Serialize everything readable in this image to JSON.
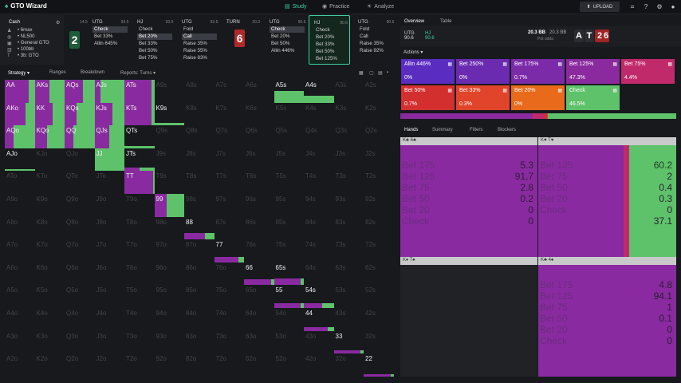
{
  "app": {
    "title": "GTO Wizard"
  },
  "nav": {
    "study": "Study",
    "practice": "Practice",
    "analyze": "Analyze",
    "upload": "UPLOAD"
  },
  "settings": {
    "mode": "Cash",
    "items": [
      "6max",
      "NL500",
      "General GTO",
      "100bb",
      "3b: GTO"
    ]
  },
  "seats": [
    {
      "pos": "",
      "stack": "14.5",
      "actions": []
    },
    {
      "pos": "UTG",
      "stack": "93.5",
      "actions": [
        {
          "label": "Check",
          "sel": true
        },
        {
          "label": "Bet 33%",
          "sel": false
        },
        {
          "label": "Allin 645%",
          "sel": false
        }
      ]
    },
    {
      "pos": "HJ",
      "stack": "93.5",
      "actions": [
        {
          "label": "Check",
          "sel": false
        },
        {
          "label": "Bet 20%",
          "sel": true
        },
        {
          "label": "Bet 33%",
          "sel": false
        },
        {
          "label": "Bet 50%",
          "sel": false
        },
        {
          "label": "Bet 75%",
          "sel": false
        }
      ]
    },
    {
      "pos": "UTG",
      "stack": "93.5",
      "actions": [
        {
          "label": "Fold",
          "sel": false
        },
        {
          "label": "Call",
          "sel": true
        },
        {
          "label": "Raise 35%",
          "sel": false
        },
        {
          "label": "Raise 55%",
          "sel": false
        },
        {
          "label": "Raise 83%",
          "sel": false
        }
      ]
    },
    {
      "pos": "TURN",
      "stack": "20.3",
      "actions": []
    },
    {
      "pos": "UTG",
      "stack": "90.6",
      "actions": [
        {
          "label": "Check",
          "sel": true
        },
        {
          "label": "Bet 20%",
          "sel": false
        },
        {
          "label": "Bet 50%",
          "sel": false
        },
        {
          "label": "Allin 446%",
          "sel": false
        }
      ]
    },
    {
      "pos": "HJ",
      "stack": "90.6",
      "actions": [
        {
          "label": "Check",
          "sel": false
        },
        {
          "label": "Bet 20%",
          "sel": false
        },
        {
          "label": "Bet 33%",
          "sel": false
        },
        {
          "label": "Bet 50%",
          "sel": false
        },
        {
          "label": "Bet 125%",
          "sel": false
        }
      ]
    },
    {
      "pos": "UTG",
      "stack": "90.6",
      "actions": [
        {
          "label": "Fold",
          "sel": false
        },
        {
          "label": "Call",
          "sel": false
        },
        {
          "label": "Raise 35%",
          "sel": false
        },
        {
          "label": "Raise 92%",
          "sel": false
        }
      ]
    }
  ],
  "board_badges": {
    "flop": "2",
    "turn": "6"
  },
  "strategy_tabs": [
    "Strategy",
    "Ranges",
    "Breakdown",
    "Reports: Turns"
  ],
  "right_tabs": [
    "Overview",
    "Table"
  ],
  "spot": {
    "pos1": "UTG",
    "val1": "90.6",
    "pos2": "HJ",
    "val2": "90.6",
    "pot": "20.3 BB",
    "pot2": "20.3 BB",
    "potodds": "Pot odds:",
    "cards": [
      "A",
      "T",
      "2",
      "6"
    ]
  },
  "actions_label": "Actions",
  "actions": [
    {
      "label": "Allin 446%",
      "value": "0%",
      "color": "#5a2cbf"
    },
    {
      "label": "Bet 250%",
      "value": "0%",
      "color": "#6a2bb0"
    },
    {
      "label": "Bet 175%",
      "value": "0.7%",
      "color": "#7b2aa8"
    },
    {
      "label": "Bet 125%",
      "value": "47.3%",
      "color": "#8a2a9e"
    },
    {
      "label": "Bet 75%",
      "value": "4.4%",
      "color": "#c02a6a"
    },
    {
      "label": "Bet 50%",
      "value": "0.7%",
      "color": "#d42f2f"
    },
    {
      "label": "Bet 33%",
      "value": "0.3%",
      "color": "#e0442a"
    },
    {
      "label": "Bet 20%",
      "value": "0%",
      "color": "#e86a1a"
    },
    {
      "label": "Check",
      "value": "46.5%",
      "color": "#5ec26a"
    }
  ],
  "hands_tabs": [
    "Hands",
    "Summary",
    "Filters",
    "Blockers"
  ],
  "hand_panels": [
    {
      "head": "K♣ 6♣",
      "lines": [
        {
          "a": "Bet 175",
          "v": "5.3"
        },
        {
          "a": "Bet 125",
          "v": "91.7"
        },
        {
          "a": "Bet 75",
          "v": "2.8"
        },
        {
          "a": "Bet 50",
          "v": "0.2"
        },
        {
          "a": "Bet 20",
          "v": "0"
        },
        {
          "a": "Check",
          "v": "0"
        }
      ]
    },
    {
      "head": "K♥ T♥",
      "lines": [
        {
          "a": "Bet 125",
          "v": "60.2"
        },
        {
          "a": "Bet 75",
          "v": "2"
        },
        {
          "a": "Bet 50",
          "v": "0.4"
        },
        {
          "a": "Bet 20",
          "v": "0.3"
        },
        {
          "a": "Check",
          "v": "0"
        },
        {
          "a": "",
          "v": "37.1"
        }
      ]
    },
    {
      "head": "K♦ T♠",
      "lines": []
    },
    {
      "head": "K♣ 4♠",
      "lines": [
        {
          "a": "Bet 175",
          "v": "4.8"
        },
        {
          "a": "Bet 125",
          "v": "94.1"
        },
        {
          "a": "Bet 75",
          "v": "1"
        },
        {
          "a": "Bet 50",
          "v": "0.1"
        },
        {
          "a": "Bet 20",
          "v": "0"
        },
        {
          "a": "Check",
          "v": "0"
        }
      ]
    }
  ],
  "grid": {
    "ranks": [
      "A",
      "K",
      "Q",
      "J",
      "T",
      "9",
      "8",
      "7",
      "6",
      "5",
      "4",
      "3",
      "2"
    ],
    "active": {
      "AA": [
        0.8,
        0.2,
        1
      ],
      "AKs": [
        0.5,
        0.5,
        1
      ],
      "AQs": [
        0.6,
        0.4,
        1
      ],
      "AJs": [
        0.2,
        0.8,
        1
      ],
      "ATs": [
        0.9,
        0.1,
        1
      ],
      "AKo": [
        0.7,
        0.3,
        1
      ],
      "KK": [
        0.6,
        0.4,
        1
      ],
      "KQs": [
        0.4,
        0.6,
        1
      ],
      "KJs": [
        0.6,
        0.4,
        1
      ],
      "KTs": [
        0.9,
        0.1,
        1
      ],
      "AQo": [
        0.3,
        0.7,
        1
      ],
      "KQo": [
        0.4,
        0.6,
        1
      ],
      "QQ": [
        0.3,
        0.7,
        1
      ],
      "QJs": [
        0.5,
        0.5,
        1
      ],
      "JJ": [
        0,
        1,
        1
      ],
      "TT": [
        0.95,
        0.05,
        1
      ],
      "99": [
        0.4,
        0.6,
        1
      ],
      "A5s": [
        0,
        1,
        0.5
      ],
      "A4s": [
        0,
        1,
        0.3
      ],
      "K9s": [
        0,
        1,
        0.1
      ],
      "QTs": [
        0,
        1,
        0.1
      ],
      "JTs": [
        0.5,
        0.5,
        0.15
      ],
      "88": [
        0.7,
        0.3,
        0.3
      ],
      "77": [
        0.8,
        0.2,
        0.25
      ],
      "66": [
        0.9,
        0.1,
        0.25
      ],
      "65s": [
        0.9,
        0.1,
        0.3
      ],
      "55": [
        0.9,
        0.1,
        0.2
      ],
      "54s": [
        0.6,
        0.4,
        0.2
      ],
      "44": [
        0.8,
        0.2,
        0.15
      ],
      "33": [
        0.9,
        0.1,
        0.15
      ],
      "22": [
        0.9,
        0.1,
        0.1
      ],
      "AJo": [
        0,
        1,
        0.05
      ]
    }
  }
}
